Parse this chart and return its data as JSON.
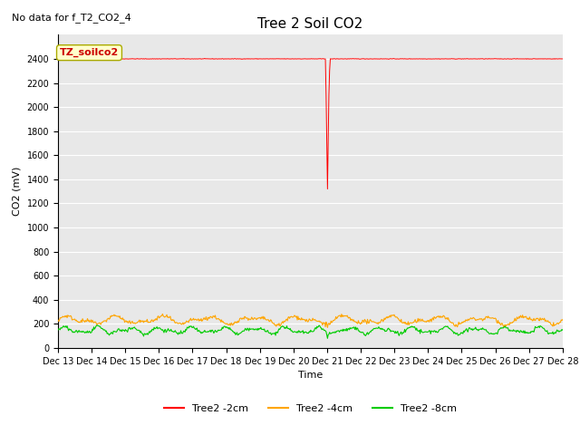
{
  "title": "Tree 2 Soil CO2",
  "no_data_text": "No data for f_T2_CO2_4",
  "xlabel": "Time",
  "ylabel": "CO2 (mV)",
  "ylim": [
    0,
    2600
  ],
  "yticks": [
    0,
    200,
    400,
    600,
    800,
    1000,
    1200,
    1400,
    1600,
    1800,
    2000,
    2200,
    2400
  ],
  "xlim_start": 13,
  "xlim_end": 28,
  "xtick_labels": [
    "Dec 13",
    "Dec 14",
    "Dec 15",
    "Dec 16",
    "Dec 17",
    "Dec 18",
    "Dec 19",
    "Dec 20",
    "Dec 21",
    "Dec 22",
    "Dec 23",
    "Dec 24",
    "Dec 25",
    "Dec 26",
    "Dec 27",
    "Dec 28"
  ],
  "legend_labels": [
    "Tree2 -2cm",
    "Tree2 -4cm",
    "Tree2 -8cm"
  ],
  "legend_colors": [
    "#ff0000",
    "#ffa500",
    "#00cc00"
  ],
  "annotation_box_text": "TZ_soilco2",
  "annotation_box_color": "#ffffcc",
  "annotation_box_edge": "#aaaa00",
  "bg_color": "#e8e8e8",
  "red_line_color": "#ff0000",
  "orange_line_color": "#ffa500",
  "green_line_color": "#00cc00",
  "title_fontsize": 11,
  "axis_label_fontsize": 8,
  "tick_fontsize": 7,
  "legend_fontsize": 8
}
